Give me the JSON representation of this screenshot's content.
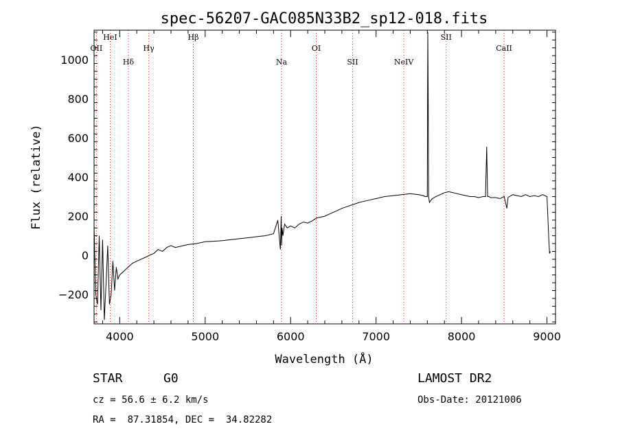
{
  "chart_data": {
    "type": "line",
    "title": "spec-56207-GAC085N33B2_sp12-018.fits",
    "xlabel": "Wavelength (Å)",
    "ylabel": "Flux (relative)",
    "xlim": [
      3700,
      9100
    ],
    "ylim": [
      -350,
      1150
    ],
    "xticks": [
      4000,
      5000,
      6000,
      7000,
      8000,
      9000
    ],
    "yticks": [
      -200,
      0,
      200,
      400,
      600,
      800,
      1000
    ],
    "grid": false,
    "series": [
      {
        "color": "#000000",
        "x": [
          3700,
          3720,
          3740,
          3760,
          3780,
          3800,
          3820,
          3840,
          3860,
          3880,
          3900,
          3920,
          3940,
          3960,
          3980,
          4000,
          4050,
          4100,
          4150,
          4200,
          4250,
          4300,
          4350,
          4400,
          4450,
          4500,
          4550,
          4600,
          4650,
          4700,
          4800,
          4900,
          5000,
          5100,
          5200,
          5300,
          5400,
          5500,
          5600,
          5700,
          5800,
          5850,
          5880,
          5890,
          5895,
          5900,
          5910,
          5930,
          5960,
          6000,
          6050,
          6100,
          6150,
          6200,
          6250,
          6300,
          6350,
          6400,
          6450,
          6500,
          6600,
          6700,
          6800,
          6900,
          7000,
          7100,
          7200,
          7300,
          7400,
          7500,
          7550,
          7580,
          7600,
          7605,
          7610,
          7615,
          7625,
          7640,
          7660,
          7700,
          7750,
          7800,
          7850,
          7900,
          7950,
          8000,
          8050,
          8100,
          8150,
          8200,
          8250,
          8280,
          8295,
          8305,
          8320,
          8340,
          8400,
          8450,
          8500,
          8530,
          8545,
          8560,
          8600,
          8650,
          8700,
          8750,
          8800,
          8850,
          8900,
          8950,
          9000,
          9020,
          9030,
          9040
        ],
        "y": [
          150,
          -200,
          -250,
          100,
          -280,
          80,
          -330,
          -150,
          50,
          -250,
          -200,
          -30,
          -180,
          -60,
          -120,
          -100,
          -80,
          -60,
          -40,
          -30,
          -20,
          -10,
          0,
          10,
          30,
          20,
          40,
          50,
          40,
          45,
          55,
          60,
          70,
          72,
          75,
          80,
          85,
          90,
          95,
          100,
          110,
          180,
          30,
          200,
          50,
          140,
          100,
          160,
          140,
          150,
          140,
          160,
          170,
          165,
          175,
          190,
          195,
          200,
          210,
          220,
          240,
          255,
          270,
          280,
          290,
          300,
          305,
          310,
          315,
          310,
          305,
          300,
          300,
          1140,
          800,
          300,
          270,
          280,
          290,
          300,
          310,
          320,
          325,
          320,
          315,
          310,
          305,
          300,
          300,
          295,
          300,
          300,
          555,
          300,
          300,
          295,
          295,
          290,
          300,
          240,
          295,
          300,
          310,
          305,
          300,
          310,
          300,
          305,
          300,
          310,
          300,
          100,
          10,
          20
        ]
      }
    ],
    "lines": [
      {
        "name": "OII",
        "x": 3727,
        "color": "#cc2222"
      },
      {
        "name": "HeI",
        "x": 3889,
        "color": "#cc2222"
      },
      {
        "name": "Hδ",
        "x": 4102,
        "color": "#cc2222"
      },
      {
        "name": "Hγ",
        "x": 4340,
        "color": "#cc2222"
      },
      {
        "name": "Hβ",
        "x": 4861,
        "color": "#cc2222"
      },
      {
        "name": "Na",
        "x": 5893,
        "color": "#cc2222"
      },
      {
        "name": "OI",
        "x": 6300,
        "color": "#cc2222"
      },
      {
        "name": "SII",
        "x": 6725,
        "color": "#cc2222"
      },
      {
        "name": "NeIV",
        "x": 7325,
        "color": "#cc2222"
      },
      {
        "name": "SII",
        "x": 7820,
        "color": "#cc2222"
      },
      {
        "name": "CaII",
        "x": 8498,
        "color": "#cc2222"
      }
    ]
  },
  "info": {
    "class": "STAR",
    "subclass": "G0",
    "survey": "LAMOST DR2",
    "cz": "cz = 56.6 ± 6.2 km/s",
    "obs_date": "Obs-Date: 20121006",
    "coords": "RA =  87.31854, DEC =  34.82282"
  }
}
